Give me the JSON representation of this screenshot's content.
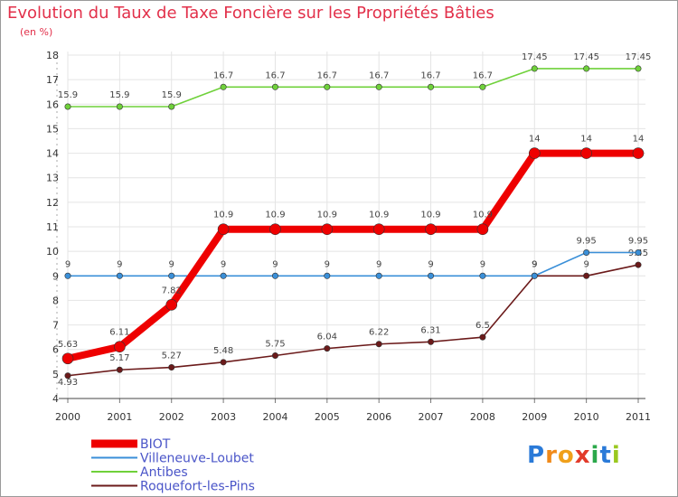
{
  "chart_data": {
    "type": "line",
    "title": "Evolution du Taux de Taxe Foncière sur les Propriétés Bâties",
    "subtitle": "(en %)",
    "x": [
      "2000",
      "2001",
      "2002",
      "2003",
      "2004",
      "2005",
      "2006",
      "2007",
      "2008",
      "2009",
      "2010",
      "2011"
    ],
    "ylim": [
      4,
      18
    ],
    "yticks": [
      4,
      5,
      6,
      7,
      8,
      9,
      10,
      11,
      12,
      13,
      14,
      15,
      16,
      17,
      18
    ],
    "grid": true,
    "legend_position": "bottom-left",
    "series": [
      {
        "name": "BIOT",
        "color": "#ee0000",
        "values": [
          5.63,
          6.11,
          7.82,
          10.9,
          10.9,
          10.9,
          10.9,
          10.9,
          10.9,
          14,
          14,
          14
        ],
        "labels": [
          "5.63",
          "6.11",
          "7.82",
          "10.9",
          "10.9",
          "10.9",
          "10.9",
          "10.9",
          "10.9",
          "14",
          "14",
          "14"
        ]
      },
      {
        "name": "Villeneuve-Loubet",
        "color": "#3a8fd8",
        "values": [
          9,
          9,
          9,
          9,
          9,
          9,
          9,
          9,
          9,
          9,
          9.95,
          9.95
        ],
        "labels": [
          "9",
          "9",
          "9",
          "9",
          "9",
          "9",
          "9",
          "9",
          "9",
          "9",
          "9.95",
          "9.95"
        ]
      },
      {
        "name": "Antibes",
        "color": "#6fd13a",
        "values": [
          15.9,
          15.9,
          15.9,
          16.7,
          16.7,
          16.7,
          16.7,
          16.7,
          16.7,
          17.45,
          17.45,
          17.45
        ],
        "labels": [
          "15.9",
          "15.9",
          "15.9",
          "16.7",
          "16.7",
          "16.7",
          "16.7",
          "16.7",
          "16.7",
          "17.45",
          "17.45",
          "17.45"
        ]
      },
      {
        "name": "Roquefort-les-Pins",
        "color": "#6b1a1a",
        "values": [
          4.93,
          5.17,
          5.27,
          5.48,
          5.75,
          6.04,
          6.22,
          6.31,
          6.5,
          9,
          9,
          9.45
        ],
        "labels": [
          "4.93",
          "5.17",
          "5.27",
          "5.48",
          "5.75",
          "6.04",
          "6.22",
          "6.31",
          "6.5",
          "9",
          "9",
          "9.45"
        ]
      }
    ],
    "draw_order": [
      "Roquefort-les-Pins",
      "Antibes",
      "Villeneuve-Loubet",
      "BIOT"
    ]
  },
  "logo": {
    "text": "Proxiti"
  }
}
